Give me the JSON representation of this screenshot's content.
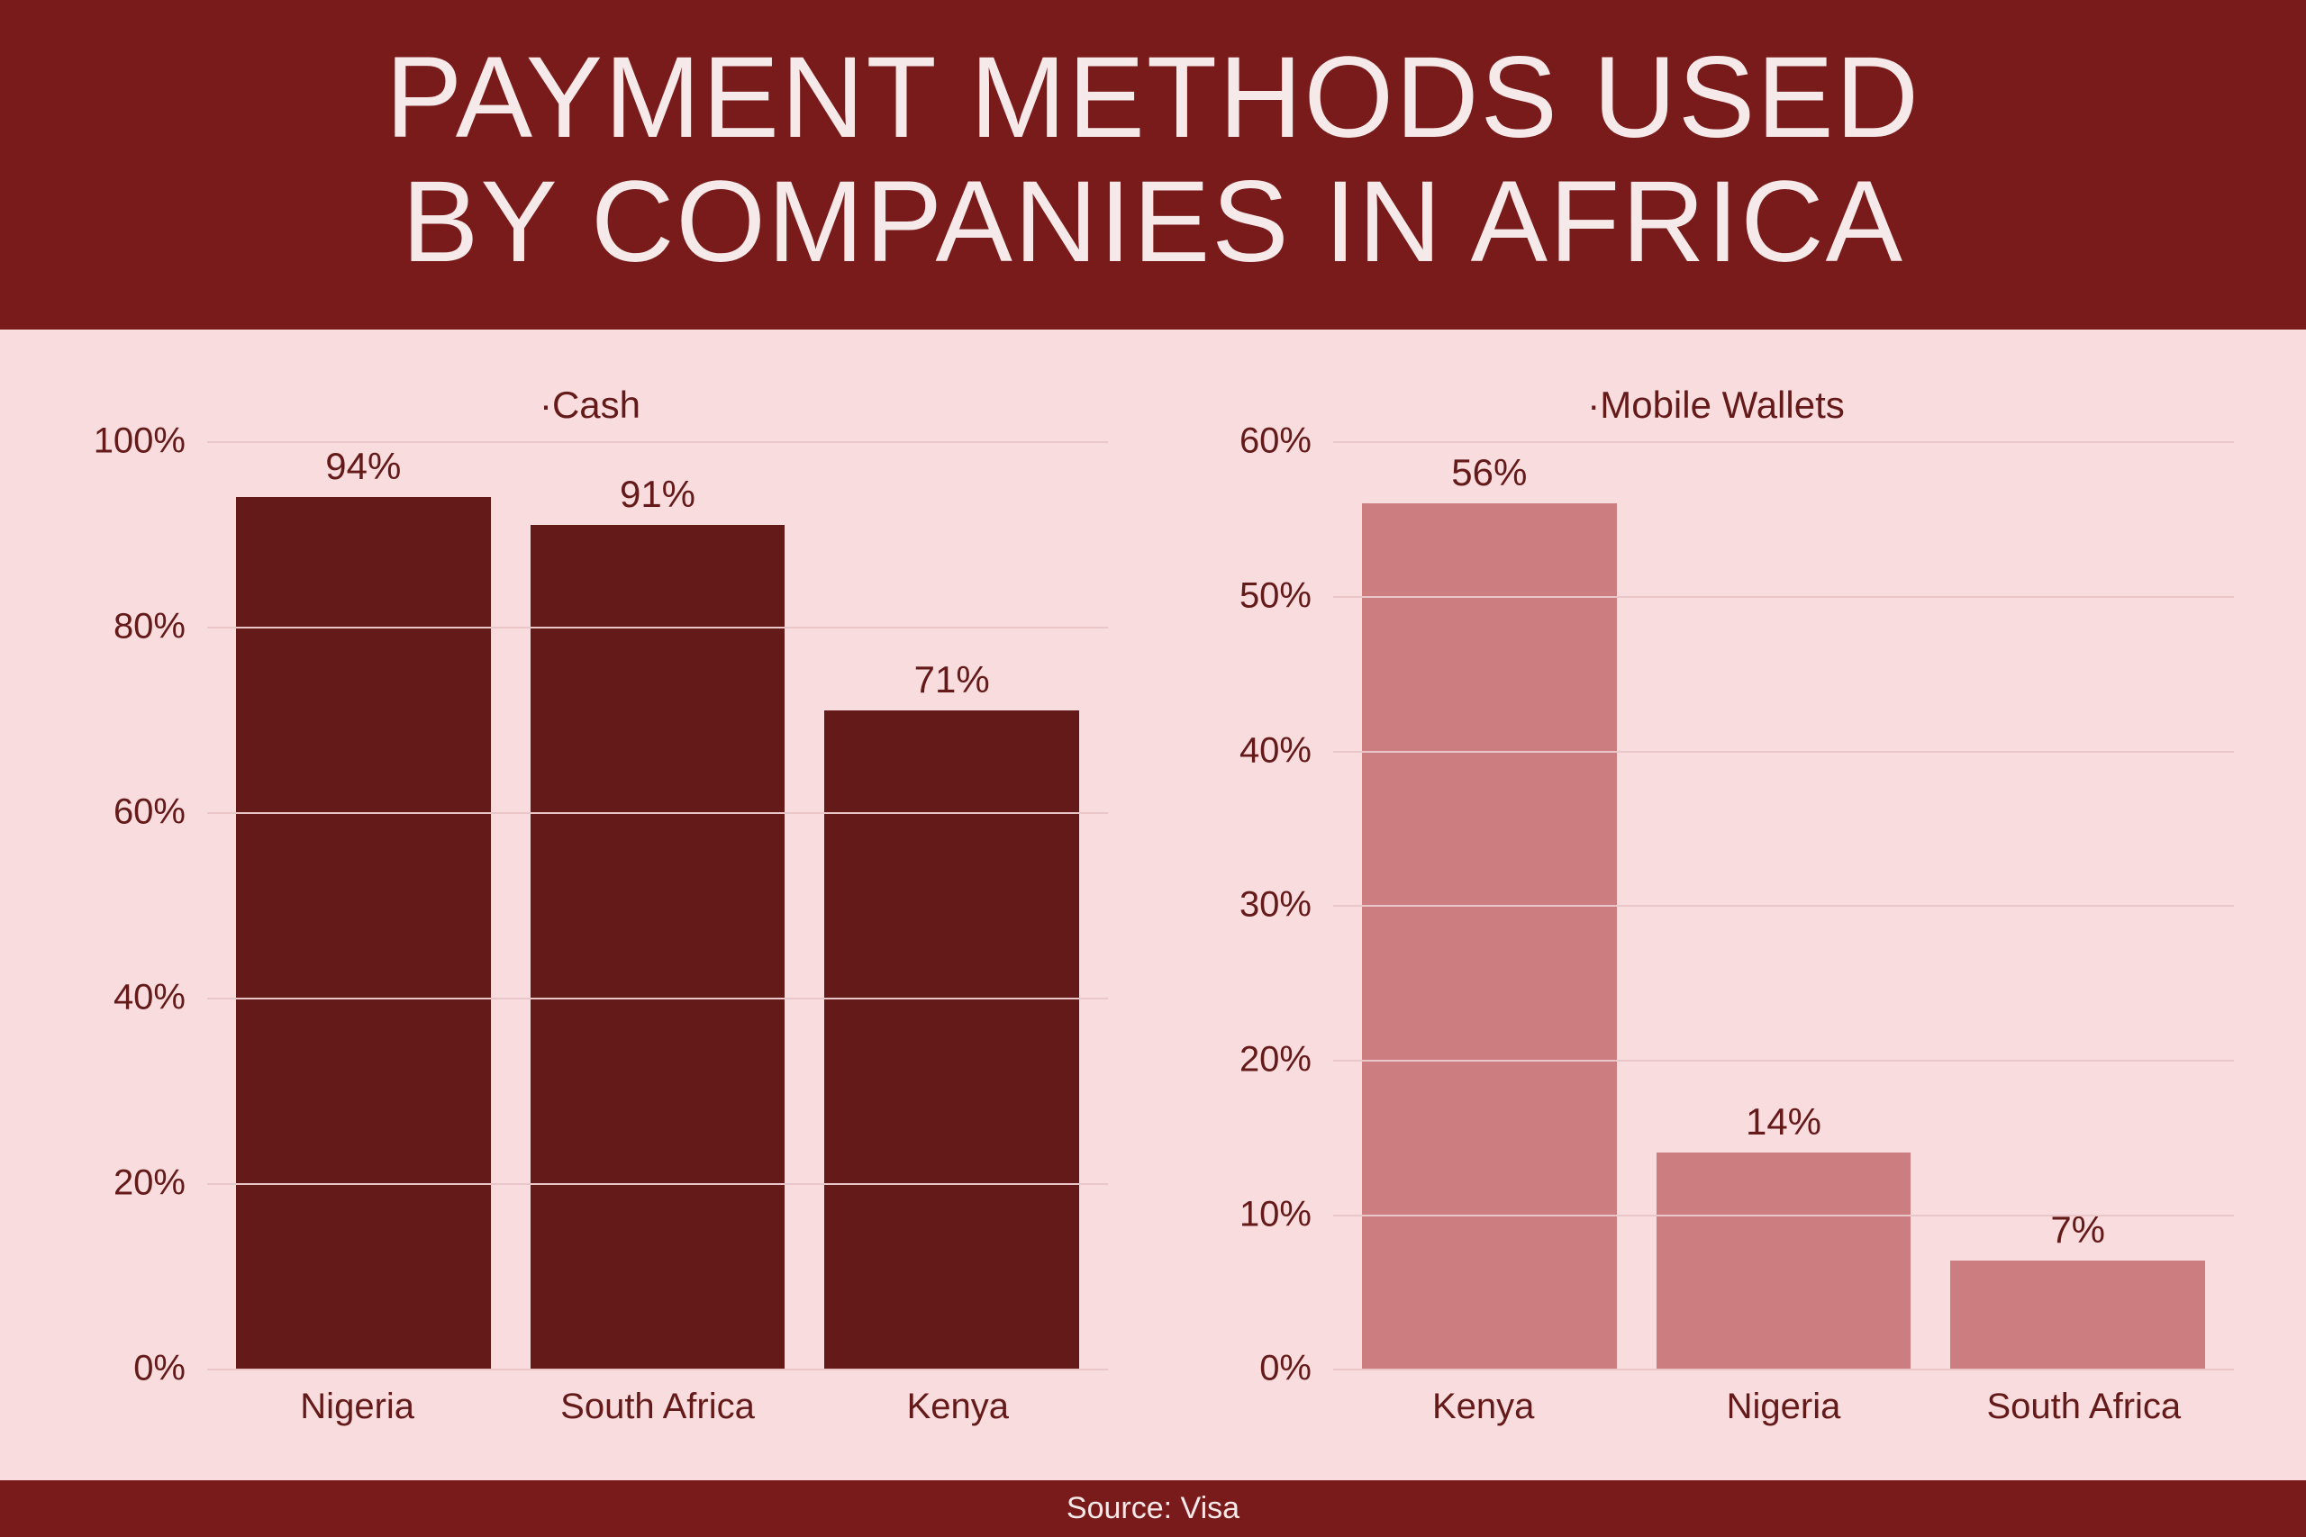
{
  "title_line1": "PAYMENT METHODS USED",
  "title_line2": "BY COMPANIES IN AFRICA",
  "source_label": "Source: Visa",
  "colors": {
    "header_bg": "#7a1b1b",
    "header_text": "#f6e9e9",
    "panel_bg": "#f8dcde",
    "grid": "#e9c7c9",
    "axis_text": "#651a1a",
    "bar_dark": "#651a1a",
    "bar_light": "#cc7d80"
  },
  "charts": [
    {
      "type": "bar",
      "title": "·Cash",
      "ylim": [
        0,
        100
      ],
      "ytick_step": 20,
      "y_suffix": "%",
      "bar_color": "#651a1a",
      "bar_width": 0.72,
      "categories": [
        "Nigeria",
        "South Africa",
        "Kenya"
      ],
      "values": [
        94,
        91,
        71
      ],
      "value_labels": [
        "94%",
        "91%",
        "71%"
      ],
      "title_fontsize": 42,
      "label_fontsize": 40,
      "value_fontsize": 42
    },
    {
      "type": "bar",
      "title": "·Mobile Wallets",
      "ylim": [
        0,
        60
      ],
      "ytick_step": 10,
      "y_suffix": "%",
      "bar_color": "#cc7d80",
      "bar_width": 0.72,
      "categories": [
        "Kenya",
        "Nigeria",
        "South Africa"
      ],
      "values": [
        56,
        14,
        7
      ],
      "value_labels": [
        "56%",
        "14%",
        "7%"
      ],
      "title_fontsize": 42,
      "label_fontsize": 40,
      "value_fontsize": 42
    }
  ]
}
